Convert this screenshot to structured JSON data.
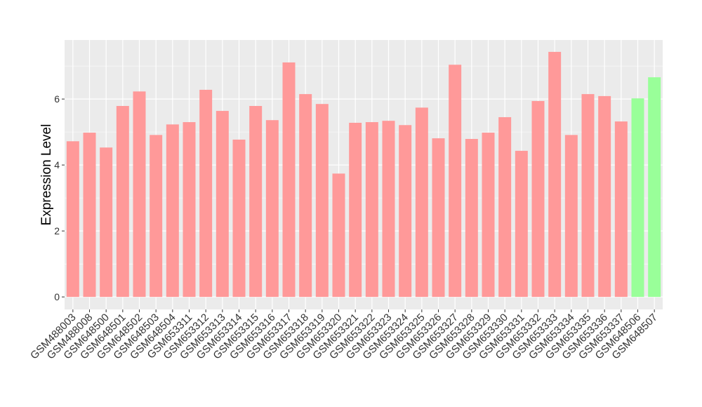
{
  "chart_data": {
    "type": "bar",
    "y_label": "Expression Level",
    "categories": [
      "GSM488003",
      "GSM488008",
      "GSM648500",
      "GSM648501",
      "GSM648502",
      "GSM648503",
      "GSM648504",
      "GSM653311",
      "GSM653312",
      "GSM653313",
      "GSM653314",
      "GSM653315",
      "GSM653316",
      "GSM653317",
      "GSM653318",
      "GSM653319",
      "GSM653320",
      "GSM653321",
      "GSM653322",
      "GSM653323",
      "GSM653324",
      "GSM653325",
      "GSM653326",
      "GSM653327",
      "GSM653328",
      "GSM653329",
      "GSM653330",
      "GSM653331",
      "GSM653332",
      "GSM653333",
      "GSM653334",
      "GSM653335",
      "GSM653336",
      "GSM653337",
      "GSM648506",
      "GSM648507"
    ],
    "values": [
      4.72,
      4.98,
      4.53,
      5.79,
      6.23,
      4.91,
      5.23,
      5.3,
      6.28,
      5.64,
      4.77,
      5.79,
      5.36,
      7.11,
      6.15,
      5.85,
      3.74,
      5.28,
      5.3,
      5.34,
      5.21,
      5.74,
      4.81,
      7.04,
      4.79,
      4.98,
      5.45,
      4.43,
      5.94,
      7.43,
      4.91,
      6.15,
      6.09,
      5.32,
      6.02,
      6.66
    ],
    "colors": [
      "#ff9999",
      "#ff9999",
      "#ff9999",
      "#ff9999",
      "#ff9999",
      "#ff9999",
      "#ff9999",
      "#ff9999",
      "#ff9999",
      "#ff9999",
      "#ff9999",
      "#ff9999",
      "#ff9999",
      "#ff9999",
      "#ff9999",
      "#ff9999",
      "#ff9999",
      "#ff9999",
      "#ff9999",
      "#ff9999",
      "#ff9999",
      "#ff9999",
      "#ff9999",
      "#ff9999",
      "#ff9999",
      "#ff9999",
      "#ff9999",
      "#ff9999",
      "#ff9999",
      "#ff9999",
      "#ff9999",
      "#ff9999",
      "#ff9999",
      "#ff9999",
      "#99ff99",
      "#99ff99"
    ],
    "ylim": [
      -0.38,
      7.79
    ],
    "yticks": [
      0,
      2,
      4,
      6
    ],
    "minor_yticks": [
      1,
      3,
      5,
      7
    ],
    "grid": true
  }
}
